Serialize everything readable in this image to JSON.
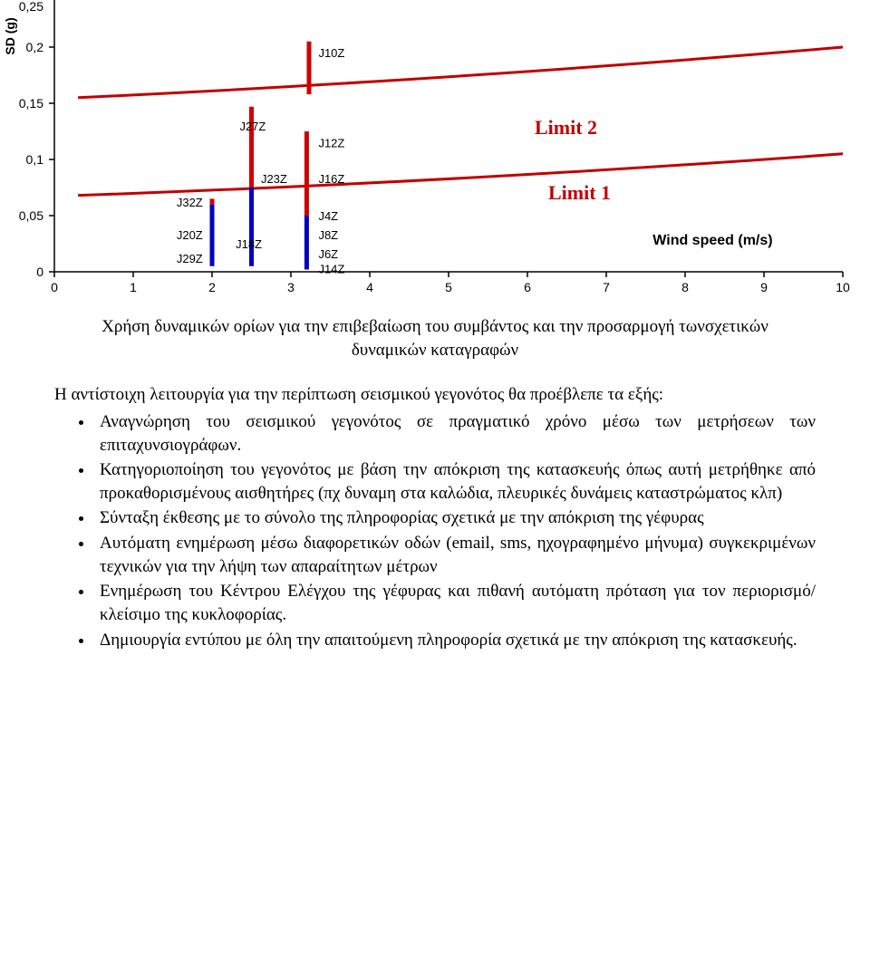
{
  "chart": {
    "type": "scatter",
    "background_color": "#ffffff",
    "ylabel": "SD (g)",
    "ylabel_fontsize": 14,
    "xlabel": "Wind speed (m/s)",
    "xlabel_fontsize": 16,
    "xlabel_weight": "bold",
    "axis_color": "#000000",
    "tick_fontsize": 14,
    "xlim": [
      0,
      10
    ],
    "ylim": [
      0,
      0.25
    ],
    "xticks": [
      0,
      1,
      2,
      3,
      4,
      5,
      6,
      7,
      8,
      9,
      10
    ],
    "yticks": [
      0,
      0.05,
      0.1,
      0.15,
      0.2,
      0.25
    ],
    "ytick_labels": [
      "0",
      "0,05",
      "0,1",
      "0,15",
      "0,2",
      "0,25"
    ],
    "limit_curves": [
      {
        "label": "Limit 2",
        "color": "#c00000",
        "width": 3,
        "y_left": 0.155,
        "y_right": 0.2
      },
      {
        "label": "Limit 1",
        "color": "#c00000",
        "width": 3,
        "y_left": 0.068,
        "y_right": 0.105
      }
    ],
    "label_positions": {
      "Limit 2": {
        "x": 6.2,
        "y": 0.135
      },
      "Limit 1": {
        "x": 6.4,
        "y": 0.088
      }
    },
    "marker_labels": [
      {
        "text": "J10Z",
        "x_offset": 3.35,
        "y": 0.195
      },
      {
        "text": "J27Z",
        "x_offset": 2.35,
        "y": 0.13
      },
      {
        "text": "J12Z",
        "x_offset": 3.35,
        "y": 0.115
      },
      {
        "text": "J16Z",
        "x_offset": 3.35,
        "y": 0.083
      },
      {
        "text": "J23Z",
        "x_offset": 2.62,
        "y": 0.083
      },
      {
        "text": "J32Z",
        "x_offset": 1.55,
        "y": 0.062
      },
      {
        "text": "J4Z",
        "x_offset": 3.35,
        "y": 0.05
      },
      {
        "text": "J8Z",
        "x_offset": 3.35,
        "y": 0.033
      },
      {
        "text": "J20Z",
        "x_offset": 1.55,
        "y": 0.033
      },
      {
        "text": "J18Z",
        "x_offset": 2.3,
        "y": 0.025
      },
      {
        "text": "J6Z",
        "x_offset": 3.35,
        "y": 0.016
      },
      {
        "text": "J29Z",
        "x_offset": 1.55,
        "y": 0.012
      },
      {
        "text": "J14Z",
        "x_offset": 3.35,
        "y": 0.003
      }
    ],
    "series": [
      {
        "x": 2.0,
        "y_bottom": 0.005,
        "y_top": 0.06,
        "color": "#0000c0"
      },
      {
        "x": 2.0,
        "y_bottom": 0.06,
        "y_top": 0.065,
        "color": "#d00000"
      },
      {
        "x": 2.5,
        "y_bottom": 0.005,
        "y_top": 0.075,
        "color": "#0000c0"
      },
      {
        "x": 2.5,
        "y_bottom": 0.075,
        "y_top": 0.147,
        "color": "#d00000"
      },
      {
        "x": 3.2,
        "y_bottom": 0.002,
        "y_top": 0.05,
        "color": "#0000c0"
      },
      {
        "x": 3.2,
        "y_bottom": 0.05,
        "y_top": 0.125,
        "color": "#d00000"
      },
      {
        "x": 3.23,
        "y_bottom": 0.158,
        "y_top": 0.205,
        "color": "#d00000"
      }
    ]
  },
  "caption_line1": "Χρήση δυναμικών ορίων για την επιβεβαίωση του συμβάντος  και την προσαρμογή τωνσχετικών",
  "caption_line2": "δυναμικών καταγραφών",
  "intro_para": "Η αντίστοιχη λειτουργία για την περίπτωση σεισμικού γεγονότος θα προέβλεπε τα εξής:",
  "bullets": [
    "Αναγνώρηση του σεισμικού γεγονότος σε πραγματικό χρόνο μέσω των μετρήσεων των επιταχυνσιογράφων.",
    "Κατηγοριοποίηση του γεγονότος με βάση την απόκριση της κατασκευής όπως αυτή μετρήθηκε από προκαθορισμένους αισθητήρες (πχ δυναμη στα καλώδια, πλευρικές δυνάμεις καταστρώματος κλπ)",
    "Σύνταξη έκθεσης με το σύνολο της πληροφορίας σχετικά με την απόκριση της γέφυρας",
    "Αυτόματη ενημέρωση μέσω διαφορετικών οδών (email, sms, ηχογραφημένο μήνυμα) συγκεκριμένων τεχνικών για την λήψη των απαραίτητων μέτρων",
    "Ενημέρωση του Κέντρου Ελέγχου της γέφυρας και πιθανή αυτόματη πρόταση για τον περιορισμό/κλείσιμο της κυκλοφορίας.",
    "Δημιουργία εντύπου με όλη την απαιτούμενη πληροφορία σχετικά με την απόκριση της κατασκευής."
  ]
}
